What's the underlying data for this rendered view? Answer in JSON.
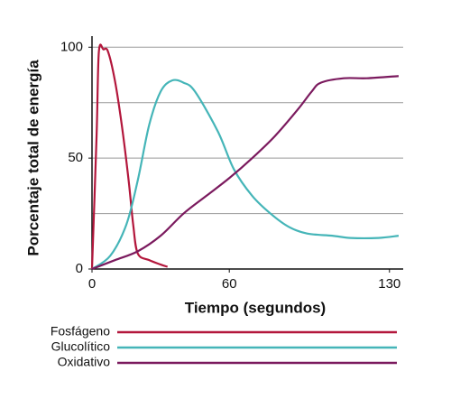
{
  "chart_data": {
    "type": "line",
    "ylabel": "Porcentaje total de energía",
    "xlabel": "Tiempo (segundos)",
    "xlim": [
      0,
      136
    ],
    "xticks": [
      0,
      60,
      130
    ],
    "ylim": [
      0,
      105
    ],
    "yticks": [
      0,
      50,
      100
    ],
    "ygrid": [
      25,
      50,
      75,
      100
    ],
    "series": [
      {
        "name": "Fosfágeno",
        "color": "#b3173c",
        "x": [
          0,
          2,
          3,
          5,
          7,
          10,
          13,
          16,
          18,
          20,
          25,
          30,
          33
        ],
        "values": [
          0,
          60,
          98,
          99,
          98,
          85,
          65,
          40,
          20,
          7,
          4,
          2,
          1
        ]
      },
      {
        "name": "Glucolítico",
        "color": "#45b5b8",
        "x": [
          0,
          8,
          15,
          20,
          25,
          30,
          35,
          40,
          45,
          55,
          62,
          70,
          78,
          86,
          94,
          105,
          113,
          125,
          134
        ],
        "values": [
          0,
          6,
          20,
          40,
          65,
          80,
          85,
          84,
          80,
          62,
          45,
          33,
          25,
          19,
          16,
          15,
          14,
          14,
          15
        ]
      },
      {
        "name": "Oxidativo",
        "color": "#7b1a5e",
        "x": [
          0,
          10,
          20,
          30,
          40,
          50,
          60,
          70,
          80,
          90,
          96,
          100,
          110,
          120,
          134
        ],
        "values": [
          0,
          4,
          8,
          15,
          25,
          33,
          41,
          50,
          60,
          72,
          80,
          84,
          86,
          86,
          87
        ]
      }
    ]
  }
}
